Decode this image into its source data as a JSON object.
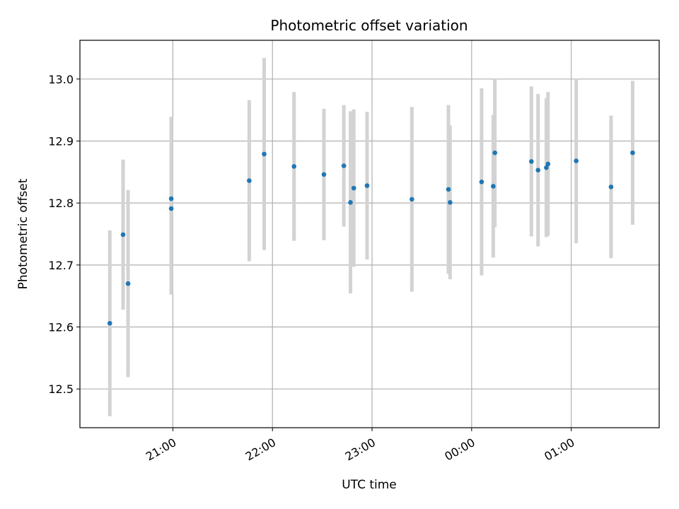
{
  "chart_data": {
    "type": "scatter",
    "title": "Photometric offset variation",
    "xlabel": "UTC time",
    "ylabel": "Photometric offset",
    "x_tick_labels": [
      "21:00",
      "22:00",
      "23:00",
      "00:00",
      "01:00"
    ],
    "y_tick_labels": [
      "12.5",
      "12.6",
      "12.7",
      "12.8",
      "12.9",
      "13.0"
    ],
    "y_ticks": [
      12.5,
      12.6,
      12.7,
      12.8,
      12.9,
      13.0
    ],
    "x_ticks": [
      "21:00",
      "22:00",
      "23:00",
      "00:00",
      "01:00"
    ],
    "xlim": [
      "20:04",
      "01:53"
    ],
    "ylim": [
      12.4375,
      13.0625
    ],
    "grid": true,
    "point_color": "#1f77b4",
    "errorbar_color": "#d3d3d3",
    "points": [
      {
        "x": "20:22",
        "y": 12.606,
        "err": 0.15
      },
      {
        "x": "20:30",
        "y": 12.749,
        "err": 0.121
      },
      {
        "x": "20:33",
        "y": 12.67,
        "err": 0.151
      },
      {
        "x": "20:59",
        "y": 12.807,
        "err": 0.132
      },
      {
        "x": "20:59",
        "y": 12.791,
        "err": 0.139
      },
      {
        "x": "21:46",
        "y": 12.836,
        "err": 0.13
      },
      {
        "x": "21:55",
        "y": 12.879,
        "err": 0.155
      },
      {
        "x": "22:13",
        "y": 12.859,
        "err": 0.12
      },
      {
        "x": "22:31",
        "y": 12.846,
        "err": 0.106
      },
      {
        "x": "22:43",
        "y": 12.86,
        "err": 0.098
      },
      {
        "x": "22:47",
        "y": 12.801,
        "err": 0.147
      },
      {
        "x": "22:49",
        "y": 12.824,
        "err": 0.127
      },
      {
        "x": "22:57",
        "y": 12.828,
        "err": 0.119
      },
      {
        "x": "23:24",
        "y": 12.806,
        "err": 0.149
      },
      {
        "x": "23:46",
        "y": 12.822,
        "err": 0.136
      },
      {
        "x": "23:47",
        "y": 12.801,
        "err": 0.124
      },
      {
        "x": "00:06",
        "y": 12.834,
        "err": 0.151
      },
      {
        "x": "00:13",
        "y": 12.827,
        "err": 0.115
      },
      {
        "x": "00:14",
        "y": 12.881,
        "err": 0.12
      },
      {
        "x": "00:36",
        "y": 12.867,
        "err": 0.121
      },
      {
        "x": "00:40",
        "y": 12.853,
        "err": 0.123
      },
      {
        "x": "00:45",
        "y": 12.857,
        "err": 0.112
      },
      {
        "x": "00:46",
        "y": 12.863,
        "err": 0.116
      },
      {
        "x": "01:03",
        "y": 12.868,
        "err": 0.133
      },
      {
        "x": "01:24",
        "y": 12.826,
        "err": 0.115
      },
      {
        "x": "01:37",
        "y": 12.881,
        "err": 0.116
      }
    ]
  }
}
